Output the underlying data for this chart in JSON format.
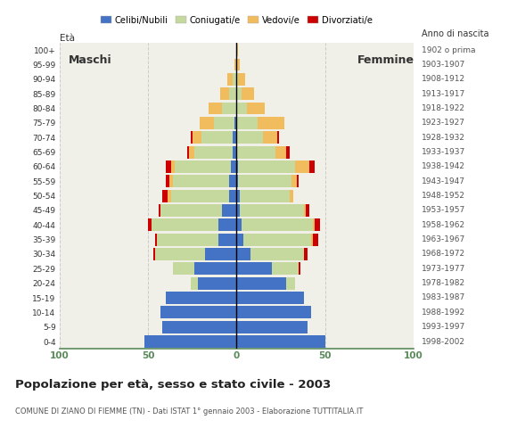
{
  "age_groups": [
    "0-4",
    "5-9",
    "10-14",
    "15-19",
    "20-24",
    "25-29",
    "30-34",
    "35-39",
    "40-44",
    "45-49",
    "50-54",
    "55-59",
    "60-64",
    "65-69",
    "70-74",
    "75-79",
    "80-84",
    "85-89",
    "90-94",
    "95-99",
    "100+"
  ],
  "birth_years": [
    "1998-2002",
    "1993-1997",
    "1988-1992",
    "1983-1987",
    "1978-1982",
    "1973-1977",
    "1968-1972",
    "1963-1967",
    "1958-1962",
    "1953-1957",
    "1948-1952",
    "1943-1947",
    "1938-1942",
    "1933-1937",
    "1928-1932",
    "1923-1927",
    "1918-1922",
    "1913-1917",
    "1908-1912",
    "1903-1907",
    "1902 o prima"
  ],
  "colors": {
    "celibe": "#4472c4",
    "coniugato": "#c5d89e",
    "vedovo": "#f0bc5e",
    "divorziato": "#cc0000"
  },
  "legend_labels": [
    "Celibi/Nubili",
    "Coniugati/e",
    "Vedovi/e",
    "Divorziati/e"
  ],
  "maschi": {
    "celibe": [
      52,
      42,
      43,
      40,
      22,
      24,
      18,
      10,
      10,
      8,
      4,
      4,
      3,
      2,
      2,
      1,
      0,
      0,
      0,
      0,
      0
    ],
    "coniugato": [
      0,
      0,
      0,
      0,
      4,
      12,
      28,
      35,
      38,
      35,
      33,
      32,
      32,
      22,
      18,
      12,
      8,
      4,
      2,
      0,
      0
    ],
    "vedovo": [
      0,
      0,
      0,
      0,
      0,
      0,
      0,
      0,
      0,
      0,
      2,
      2,
      2,
      3,
      5,
      8,
      8,
      5,
      3,
      1,
      0
    ],
    "divorziato": [
      0,
      0,
      0,
      0,
      0,
      0,
      1,
      1,
      2,
      1,
      3,
      2,
      3,
      1,
      1,
      0,
      0,
      0,
      0,
      0,
      0
    ]
  },
  "femmine": {
    "celibe": [
      50,
      40,
      42,
      38,
      28,
      20,
      8,
      4,
      3,
      2,
      2,
      1,
      1,
      0,
      0,
      0,
      0,
      0,
      0,
      0,
      0
    ],
    "coniugato": [
      0,
      0,
      0,
      0,
      5,
      15,
      30,
      38,
      40,
      36,
      28,
      30,
      32,
      22,
      15,
      12,
      6,
      3,
      1,
      0,
      0
    ],
    "vedovo": [
      0,
      0,
      0,
      0,
      0,
      0,
      0,
      1,
      1,
      1,
      2,
      3,
      8,
      6,
      8,
      15,
      10,
      7,
      4,
      2,
      1
    ],
    "divorziato": [
      0,
      0,
      0,
      0,
      0,
      1,
      2,
      3,
      3,
      2,
      0,
      1,
      3,
      2,
      1,
      0,
      0,
      0,
      0,
      0,
      0
    ]
  },
  "title": "Popolazione per età, sesso e stato civile - 2003",
  "subtitle": "COMUNE DI ZIANO DI FIEMME (TN) - Dati ISTAT 1° gennaio 2003 - Elaborazione TUTTITALIA.IT",
  "xlim": 100,
  "bg_color": "#ffffff",
  "plot_bg": "#f0f0e8",
  "grid_color": "#c8c8c8",
  "axis_color": "#5a8a5a",
  "bar_height": 0.85
}
